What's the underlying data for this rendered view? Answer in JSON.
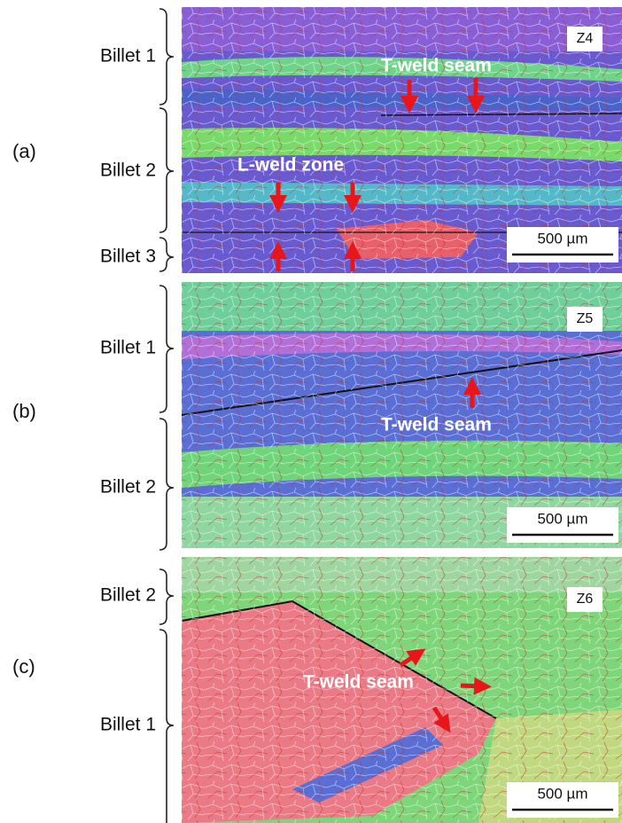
{
  "panels": [
    {
      "label": "(a)",
      "zone": "Z4",
      "billets": [
        "Billet 1",
        "Billet 2",
        "Billet 3"
      ],
      "annotations": [
        "T-weld seam",
        "L-weld zone"
      ],
      "scale_bar": "500 µm"
    },
    {
      "label": "(b)",
      "zone": "Z5",
      "billets": [
        "Billet 1",
        "Billet 2"
      ],
      "annotations": [
        "T-weld seam"
      ],
      "scale_bar": "500 µm"
    },
    {
      "label": "(c)",
      "zone": "Z6",
      "billets": [
        "Billet 2",
        "Billet 1"
      ],
      "annotations": [
        "T-weld seam"
      ],
      "scale_bar": "500 µm"
    }
  ]
}
